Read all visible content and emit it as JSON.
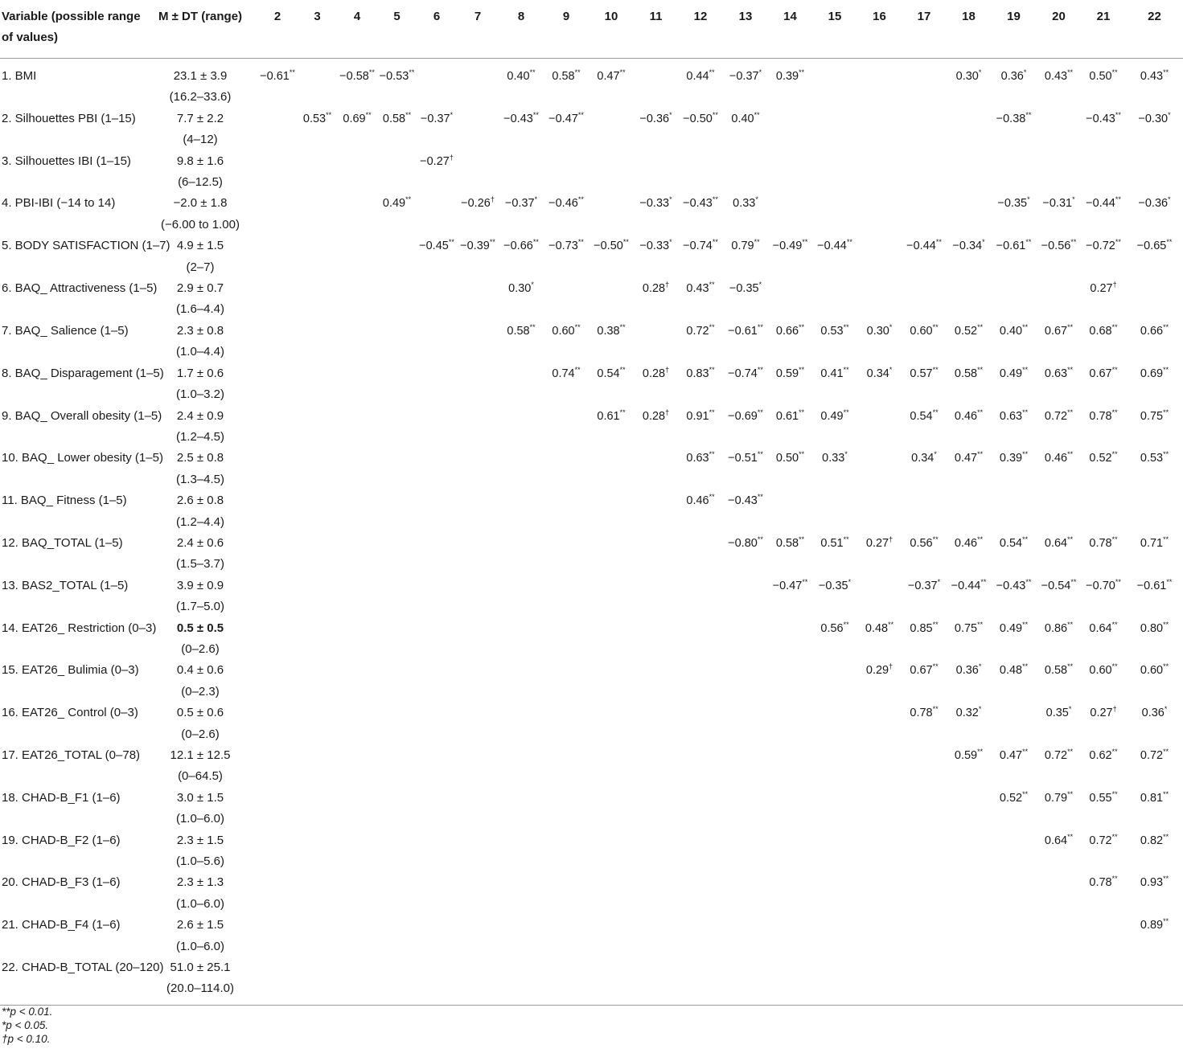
{
  "header": {
    "variable": "Variable (possible range of values)",
    "stat": "M ± DT (range)",
    "columns": [
      "2",
      "3",
      "4",
      "5",
      "6",
      "7",
      "8",
      "9",
      "10",
      "11",
      "12",
      "13",
      "14",
      "15",
      "16",
      "17",
      "18",
      "19",
      "20",
      "21",
      "22"
    ]
  },
  "rows": [
    {
      "name": "1. BMI",
      "stat": "23.1 ± 3.9",
      "range": "(16.2–33.6)",
      "cells": [
        "−0.61**",
        "",
        "−0.58**",
        "−0.53**",
        "",
        "",
        "0.40**",
        "0.58**",
        "0.47**",
        "",
        "0.44**",
        "−0.37*",
        "0.39**",
        "",
        "",
        "",
        "0.30*",
        "0.36*",
        "0.43**",
        "0.50**",
        "0.43**"
      ]
    },
    {
      "name": "2. Silhouettes PBI (1–15)",
      "stat": "7.7 ± 2.2",
      "range": "(4–12)",
      "cells": [
        "",
        "0.53**",
        "0.69**",
        "0.58**",
        "−0.37*",
        "",
        "−0.43**",
        "−0.47**",
        "",
        "−0.36*",
        "−0.50**",
        "0.40**",
        "",
        "",
        "",
        "",
        "",
        "−0.38**",
        "",
        "−0.43**",
        "−0.30*"
      ]
    },
    {
      "name": "3. Silhouettes IBI (1–15)",
      "stat": "9.8 ± 1.6",
      "range": "(6–12.5)",
      "cells": [
        "",
        "",
        "",
        "",
        "−0.27†",
        "",
        "",
        "",
        "",
        "",
        "",
        "",
        "",
        "",
        "",
        "",
        "",
        "",
        "",
        "",
        ""
      ]
    },
    {
      "name": "4. PBI-IBI (−14 to 14)",
      "stat": "−2.0 ± 1.8",
      "range": "(−6.00 to 1.00)",
      "cells": [
        "",
        "",
        "",
        "0.49**",
        "",
        "−0.26†",
        "−0.37*",
        "−0.46**",
        "",
        "−0.33*",
        "−0.43**",
        "0.33*",
        "",
        "",
        "",
        "",
        "",
        "−0.35*",
        "−0.31*",
        "−0.44**",
        "−0.36*"
      ]
    },
    {
      "name": "5. BODY SATISFACTION (1–7)",
      "stat": "4.9 ± 1.5",
      "range": "(2–7)",
      "cells": [
        "",
        "",
        "",
        "",
        "−0.45**",
        "−0.39**",
        "−0.66**",
        "−0.73**",
        "−0.50**",
        "−0.33*",
        "−0.74**",
        "0.79**",
        "−0.49**",
        "−0.44**",
        "",
        "−0.44**",
        "−0.34*",
        "−0.61**",
        "−0.56**",
        "−0.72**",
        "−0.65**"
      ]
    },
    {
      "name": "6. BAQ_ Attractiveness (1–5)",
      "stat": "2.9 ± 0.7",
      "range": "(1.6–4.4)",
      "cells": [
        "",
        "",
        "",
        "",
        "",
        "",
        "0.30*",
        "",
        "",
        "0.28†",
        "0.43**",
        "−0.35*",
        "",
        "",
        "",
        "",
        "",
        "",
        "",
        "0.27†",
        ""
      ]
    },
    {
      "name": "7. BAQ_ Salience (1–5)",
      "stat": "2.3 ± 0.8",
      "range": "(1.0–4.4)",
      "cells": [
        "",
        "",
        "",
        "",
        "",
        "",
        "0.58**",
        "0.60**",
        "0.38**",
        "",
        "0.72**",
        "−0.61**",
        "0.66**",
        "0.53**",
        "0.30*",
        "0.60**",
        "0.52**",
        "0.40**",
        "0.67**",
        "0.68**",
        "0.66**"
      ]
    },
    {
      "name": "8. BAQ_ Disparagement (1–5)",
      "stat": "1.7 ± 0.6",
      "range": "(1.0–3.2)",
      "cells": [
        "",
        "",
        "",
        "",
        "",
        "",
        "",
        "0.74**",
        "0.54**",
        "0.28†",
        "0.83**",
        "−0.74**",
        "0.59**",
        "0.41**",
        "0.34*",
        "0.57**",
        "0.58**",
        "0.49**",
        "0.63**",
        "0.67**",
        "0.69**"
      ]
    },
    {
      "name": "9. BAQ_ Overall obesity (1–5)",
      "stat": "2.4 ± 0.9",
      "range": "(1.2–4.5)",
      "cells": [
        "",
        "",
        "",
        "",
        "",
        "",
        "",
        "",
        "0.61**",
        "0.28†",
        "0.91**",
        "−0.69**",
        "0.61**",
        "0.49**",
        "",
        "0.54**",
        "0.46**",
        "0.63**",
        "0.72**",
        "0.78**",
        "0.75**"
      ]
    },
    {
      "name": "10. BAQ_ Lower obesity (1–5)",
      "stat": "2.5 ± 0.8",
      "range": "(1.3–4.5)",
      "cells": [
        "",
        "",
        "",
        "",
        "",
        "",
        "",
        "",
        "",
        "",
        "0.63**",
        "−0.51**",
        "0.50**",
        "0.33*",
        "",
        "0.34*",
        "0.47**",
        "0.39**",
        "0.46**",
        "0.52**",
        "0.53**"
      ]
    },
    {
      "name": "11. BAQ_ Fitness (1–5)",
      "stat": "2.6 ± 0.8",
      "range": "(1.2–4.4)",
      "cells": [
        "",
        "",
        "",
        "",
        "",
        "",
        "",
        "",
        "",
        "",
        "0.46**",
        "−0.43**",
        "",
        "",
        "",
        "",
        "",
        "",
        "",
        "",
        ""
      ]
    },
    {
      "name": "12. BAQ_TOTAL (1–5)",
      "stat": "2.4 ± 0.6",
      "range": "(1.5–3.7)",
      "cells": [
        "",
        "",
        "",
        "",
        "",
        "",
        "",
        "",
        "",
        "",
        "",
        "−0.80**",
        "0.58**",
        "0.51**",
        "0.27†",
        "0.56**",
        "0.46**",
        "0.54**",
        "0.64**",
        "0.78**",
        "0.71**"
      ]
    },
    {
      "name": "13. BAS2_TOTAL (1–5)",
      "stat": "3.9 ± 0.9",
      "range": "(1.7–5.0)",
      "cells": [
        "",
        "",
        "",
        "",
        "",
        "",
        "",
        "",
        "",
        "",
        "",
        "",
        "−0.47**",
        "−0.35*",
        "",
        "−0.37*",
        "−0.44**",
        "−0.43**",
        "−0.54**",
        "−0.70**",
        "−0.61**"
      ]
    },
    {
      "name": "14. EAT26_ Restriction (0–3)",
      "stat": "0.5 ± 0.5",
      "range": "(0–2.6)",
      "bold": true,
      "cells": [
        "",
        "",
        "",
        "",
        "",
        "",
        "",
        "",
        "",
        "",
        "",
        "",
        "",
        "0.56**",
        "0.48**",
        "0.85**",
        "0.75**",
        "0.49**",
        "0.86**",
        "0.64**",
        "0.80**"
      ]
    },
    {
      "name": "15. EAT26_ Bulimia (0–3)",
      "stat": "0.4 ± 0.6",
      "range": "(0–2.3)",
      "cells": [
        "",
        "",
        "",
        "",
        "",
        "",
        "",
        "",
        "",
        "",
        "",
        "",
        "",
        "",
        "0.29†",
        "0.67**",
        "0.36*",
        "0.48**",
        "0.58**",
        "0.60**",
        "0.60**"
      ]
    },
    {
      "name": "16. EAT26_ Control (0–3)",
      "stat": "0.5 ± 0.6",
      "range": "(0–2.6)",
      "cells": [
        "",
        "",
        "",
        "",
        "",
        "",
        "",
        "",
        "",
        "",
        "",
        "",
        "",
        "",
        "",
        "0.78**",
        "0.32*",
        "",
        "0.35*",
        "0.27†",
        "0.36*"
      ]
    },
    {
      "name": "17. EAT26_TOTAL (0–78)",
      "stat": "12.1 ± 12.5",
      "range": "(0–64.5)",
      "cells": [
        "",
        "",
        "",
        "",
        "",
        "",
        "",
        "",
        "",
        "",
        "",
        "",
        "",
        "",
        "",
        "",
        "0.59**",
        "0.47**",
        "0.72**",
        "0.62**",
        "0.72**"
      ]
    },
    {
      "name": "18. CHAD-B_F1 (1–6)",
      "stat": "3.0 ± 1.5",
      "range": "(1.0–6.0)",
      "cells": [
        "",
        "",
        "",
        "",
        "",
        "",
        "",
        "",
        "",
        "",
        "",
        "",
        "",
        "",
        "",
        "",
        "",
        "0.52**",
        "0.79**",
        "0.55**",
        "0.81**"
      ]
    },
    {
      "name": "19. CHAD-B_F2 (1–6)",
      "stat": "2.3 ± 1.5",
      "range": "(1.0–5.6)",
      "cells": [
        "",
        "",
        "",
        "",
        "",
        "",
        "",
        "",
        "",
        "",
        "",
        "",
        "",
        "",
        "",
        "",
        "",
        "",
        "0.64**",
        "0.72**",
        "0.82**"
      ]
    },
    {
      "name": "20. CHAD-B_F3 (1–6)",
      "stat": "2.3 ± 1.3",
      "range": "(1.0–6.0)",
      "cells": [
        "",
        "",
        "",
        "",
        "",
        "",
        "",
        "",
        "",
        "",
        "",
        "",
        "",
        "",
        "",
        "",
        "",
        "",
        "",
        "0.78**",
        "0.93**"
      ]
    },
    {
      "name": "21. CHAD-B_F4 (1–6)",
      "stat": "2.6 ± 1.5",
      "range": "(1.0–6.0)",
      "cells": [
        "",
        "",
        "",
        "",
        "",
        "",
        "",
        "",
        "",
        "",
        "",
        "",
        "",
        "",
        "",
        "",
        "",
        "",
        "",
        "",
        "0.89**"
      ]
    },
    {
      "name": "22. CHAD-B_TOTAL (20–120)",
      "stat": "51.0 ± 25.1",
      "range": "(20.0–114.0)",
      "cells": [
        "",
        "",
        "",
        "",
        "",
        "",
        "",
        "",
        "",
        "",
        "",
        "",
        "",
        "",
        "",
        "",
        "",
        "",
        "",
        "",
        ""
      ]
    }
  ],
  "footnotes": [
    "**p < 0.01.",
    "*p < 0.05.",
    "†p < 0.10."
  ]
}
